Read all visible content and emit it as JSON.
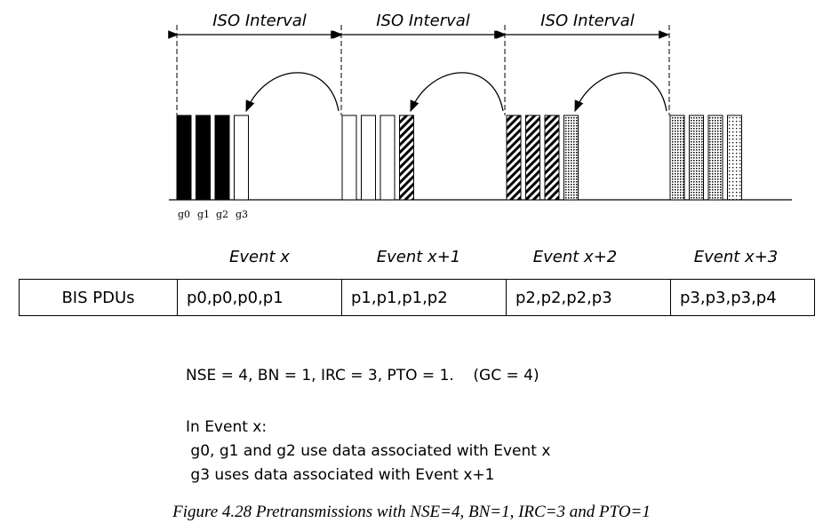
{
  "intervals": [
    {
      "label": "ISO Interval"
    },
    {
      "label": "ISO Interval"
    },
    {
      "label": "ISO Interval"
    }
  ],
  "subevent_labels": [
    "g0",
    "g1",
    "g2",
    "g3"
  ],
  "events": [
    {
      "label": "Event x",
      "pdus": "p0,p0,p0,p1",
      "fills": [
        "solid",
        "solid",
        "solid",
        "empty"
      ]
    },
    {
      "label": "Event x+1",
      "pdus": "p1,p1,p1,p2",
      "fills": [
        "empty",
        "empty",
        "empty",
        "diagonal"
      ]
    },
    {
      "label": "Event  x+2",
      "pdus": "p2,p2,p2,p3",
      "fills": [
        "diagonal",
        "diagonal",
        "diagonal",
        "dotted"
      ]
    },
    {
      "label": "Event x+3",
      "pdus": "p3,p3,p3,p4",
      "fills": [
        "dotted",
        "dotted",
        "dotted",
        "sparse-dotted"
      ]
    }
  ],
  "table": {
    "header": "BIS PDUs"
  },
  "parameters": "NSE = 4, BN = 1, IRC = 3, PTO = 1.    (GC = 4)",
  "notes": {
    "title": "In Event x:",
    "lines": [
      " g0, g1 and g2 use data associated with Event x",
      " g3 uses data associated with Event x+1"
    ]
  },
  "caption": "Figure 4.28  Pretransmissions with NSE=4, BN=1, IRC=3 and PTO=1",
  "colors": {
    "ink": "#000000",
    "background": "#ffffff"
  }
}
